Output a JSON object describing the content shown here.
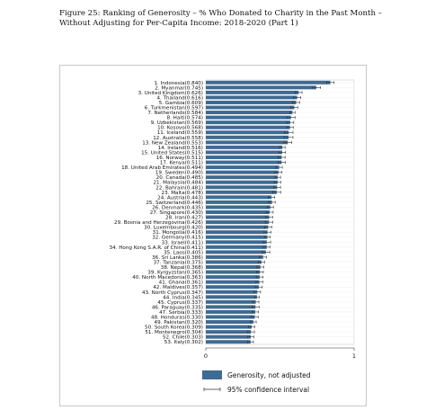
{
  "figure": {
    "title_line1": "Figure 25: Ranking of Generosity – % Who Donated to Charity in the Past Month –",
    "title_line2": "Without Adjusting for Per-Capita Income: 2018-2020 (Part 1)"
  },
  "chart_data": {
    "type": "bar",
    "orientation": "horizontal",
    "xlim": [
      0,
      1
    ],
    "x_ticks": [
      0,
      1
    ],
    "bar_color": "#3f6a92",
    "grid": true,
    "legend": [
      "Generosity, not adjusted",
      "95% confidence interval"
    ],
    "legend_placement": "bottom",
    "categories": [
      "1. Indonesia(0.840)",
      "2. Myanmar(0.745)",
      "3. United Kingdom(0.626)",
      "4. Thailand(0.616)",
      "5. Gambia(0.609)",
      "6. Turkmenistan(0.597)",
      "7. Netherlands(0.584)",
      "8. Haiti(0.574)",
      "9. Uzbekistan(0.569)",
      "10. Kosovo(0.568)",
      "11. Iceland(0.559)",
      "12. Australia(0.558)",
      "13. New Zealand(0.553)",
      "14. Ireland(0.516)",
      "15. United States(0.515)",
      "16. Norway(0.511)",
      "17. Kenya(0.511)",
      "18. United Arab Emirates(0.494)",
      "19. Sweden(0.490)",
      "20. Canada(0.485)",
      "21. Malaysia(0.484)",
      "22. Bahrain(0.481)",
      "23. Malta(0.478)",
      "24. Austria(0.443)",
      "25. Switzerland(0.446)",
      "26. Denmark(0.435)",
      "27. Singapore(0.430)",
      "28. Iran(0.427)",
      "29. Bosnia and Herzegovina(0.426)",
      "30. Luxembourg(0.420)",
      "31. Mongolia(0.416)",
      "32. Germany(0.415)",
      "33. Israel(0.411)",
      "34. Hong Kong S.A.R. of China(0.411)",
      "35. Laos(0.405)",
      "36. Sri Lanka(0.386)",
      "37. Tanzania(0.375)",
      "38. Nepal(0.368)",
      "39. Kyrgyzstan(0.365)",
      "40. North Macedonia(0.363)",
      "41. Ghana(0.361)",
      "42. Maldives(0.357)",
      "43. North Cyprus(0.347)",
      "44. India(0.345)",
      "45. Cyprus(0.337)",
      "46. Paraguay(0.335)",
      "47. Serbia(0.333)",
      "48. Honduras(0.330)",
      "49. Pakistan(0.320)",
      "50. South Korea(0.309)",
      "51. Montenegro(0.304)",
      "52. Chile(0.303)",
      "53. Italy(0.302)"
    ],
    "values": [
      0.84,
      0.745,
      0.626,
      0.616,
      0.609,
      0.597,
      0.584,
      0.574,
      0.569,
      0.568,
      0.559,
      0.558,
      0.553,
      0.516,
      0.515,
      0.511,
      0.511,
      0.494,
      0.49,
      0.485,
      0.484,
      0.481,
      0.478,
      0.443,
      0.446,
      0.435,
      0.43,
      0.427,
      0.426,
      0.42,
      0.416,
      0.415,
      0.411,
      0.411,
      0.405,
      0.386,
      0.375,
      0.368,
      0.365,
      0.363,
      0.361,
      0.357,
      0.347,
      0.345,
      0.337,
      0.335,
      0.333,
      0.33,
      0.32,
      0.309,
      0.304,
      0.303,
      0.302
    ],
    "ci_low": [
      0.815,
      0.716,
      0.603,
      0.592,
      0.585,
      0.574,
      0.566,
      0.546,
      0.545,
      0.546,
      0.53,
      0.528,
      0.526,
      0.497,
      0.492,
      0.487,
      0.486,
      0.472,
      0.466,
      0.466,
      0.462,
      0.458,
      0.45,
      0.421,
      0.424,
      0.414,
      0.406,
      0.403,
      0.4,
      0.395,
      0.392,
      0.395,
      0.385,
      0.388,
      0.379,
      0.362,
      0.354,
      0.345,
      0.342,
      0.34,
      0.338,
      0.333,
      0.325,
      0.33,
      0.316,
      0.311,
      0.31,
      0.307,
      0.3,
      0.288,
      0.28,
      0.282,
      0.283
    ],
    "ci_high": [
      0.865,
      0.774,
      0.649,
      0.64,
      0.633,
      0.62,
      0.602,
      0.602,
      0.593,
      0.59,
      0.588,
      0.588,
      0.58,
      0.535,
      0.538,
      0.535,
      0.536,
      0.516,
      0.514,
      0.504,
      0.506,
      0.504,
      0.506,
      0.465,
      0.468,
      0.456,
      0.454,
      0.451,
      0.452,
      0.445,
      0.44,
      0.435,
      0.437,
      0.434,
      0.431,
      0.41,
      0.396,
      0.391,
      0.388,
      0.386,
      0.384,
      0.381,
      0.369,
      0.36,
      0.358,
      0.359,
      0.356,
      0.353,
      0.34,
      0.33,
      0.328,
      0.324,
      0.321
    ]
  }
}
